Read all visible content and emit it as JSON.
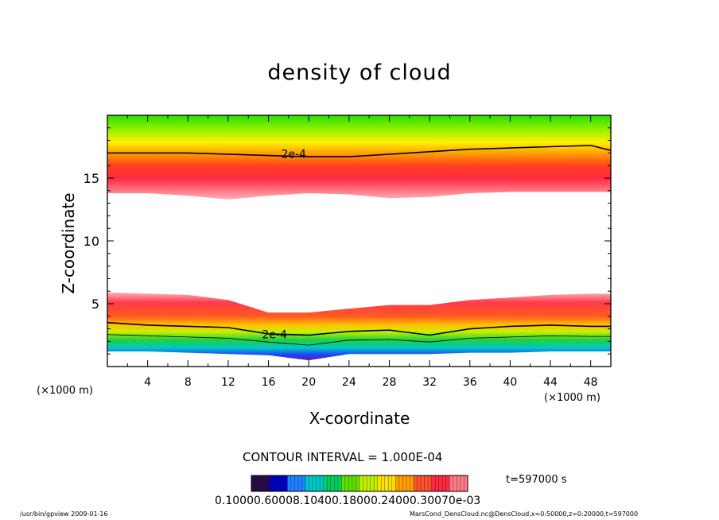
{
  "chart_data": {
    "type": "contour",
    "title": "density of cloud",
    "xlabel": "X-coordinate",
    "ylabel": "Z-coordinate",
    "x_unit_left": "(×1000 m)",
    "x_unit_right": "(×1000 m)",
    "xlim": [
      0,
      50
    ],
    "ylim": [
      0,
      20
    ],
    "x_ticks": [
      4,
      8,
      12,
      16,
      20,
      24,
      28,
      32,
      36,
      40,
      44,
      48
    ],
    "y_ticks": [
      5,
      10,
      15
    ],
    "contour_interval": "CONTOUR INTERVAL = 1.000E-04",
    "contour_labels": [
      "2e-4",
      "2e-4"
    ],
    "upper_layer": {
      "contour_2e4_z": [
        17.0,
        17.0,
        17.0,
        16.9,
        16.8,
        16.7,
        16.7,
        16.9,
        17.1,
        17.3,
        17.4,
        17.5,
        17.6,
        17.2
      ],
      "bottom_edge_z": [
        13.8,
        13.8,
        13.6,
        13.3,
        13.6,
        13.8,
        13.7,
        13.4,
        13.5,
        13.8,
        13.9,
        13.9,
        13.9,
        13.9
      ],
      "x": [
        0,
        4,
        8,
        12,
        16,
        20,
        24,
        28,
        32,
        36,
        40,
        44,
        48,
        50
      ]
    },
    "lower_layer": {
      "top_edge_z": [
        5.9,
        5.8,
        5.7,
        5.3,
        4.3,
        4.3,
        4.6,
        4.9,
        4.9,
        5.3,
        5.5,
        5.7,
        5.8,
        5.8
      ],
      "contour_2e4_z": [
        3.5,
        3.3,
        3.2,
        3.1,
        2.6,
        2.5,
        2.8,
        2.9,
        2.5,
        3.0,
        3.2,
        3.3,
        3.2,
        3.2
      ],
      "bottom_edge_z": [
        1.2,
        1.2,
        1.1,
        1.0,
        0.9,
        0.5,
        1.0,
        1.0,
        1.0,
        1.1,
        1.1,
        1.2,
        1.2,
        1.2
      ],
      "x": [
        0,
        4,
        8,
        12,
        16,
        20,
        24,
        28,
        32,
        36,
        40,
        44,
        48,
        50
      ]
    },
    "colorbar": {
      "labels_text": "0.10000.60008.10400.18000.24000.30070e-03",
      "colors": [
        "#2a0a4a",
        "#0000c8",
        "#2080ff",
        "#00c8c8",
        "#00d060",
        "#60e000",
        "#c0f000",
        "#ffe000",
        "#ffa000",
        "#ff5030",
        "#ff2a40",
        "#ff7a88"
      ]
    },
    "time_label": "t=597000 s",
    "grid": false,
    "legend": "colorbar-bottom"
  },
  "footer": {
    "left": "/usr/bin/gpview   2009-01-16",
    "right": "MarsCond_DensCloud.nc@DensCloud,x=0:50000,z=0:20000,t=597000"
  }
}
